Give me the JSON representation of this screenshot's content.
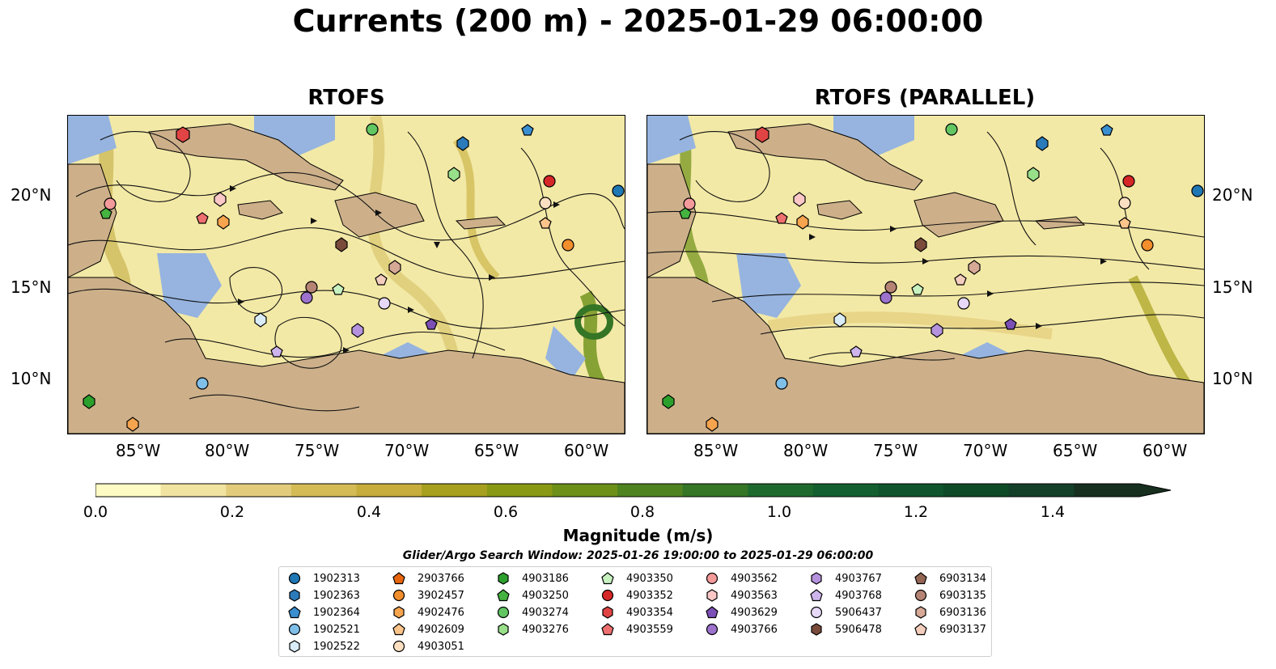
{
  "title": "Currents (200 m) - 2025-01-29 06:00:00",
  "panels": [
    {
      "title": "RTOFS"
    },
    {
      "title": "RTOFS (PARALLEL)"
    }
  ],
  "axes": {
    "lon_ticks": [
      "85°W",
      "80°W",
      "75°W",
      "70°W",
      "65°W",
      "60°W"
    ],
    "lat_ticks": [
      "20°N",
      "15°N",
      "10°N"
    ]
  },
  "colorbar": {
    "label": "Magnitude (m/s)",
    "ticks": [
      "0.0",
      "0.2",
      "0.4",
      "0.6",
      "0.8",
      "1.0",
      "1.2",
      "1.4"
    ],
    "colors": [
      "#fffbc4",
      "#f1e3a0",
      "#e2cc7c",
      "#d4bb56",
      "#c6ad3c",
      "#a6a01e",
      "#8a9914",
      "#6c9018",
      "#4f8320",
      "#357526",
      "#1e6a2e",
      "#145f30",
      "#0f542d",
      "#0f4a27",
      "#14402a",
      "#172f1e"
    ]
  },
  "search_window": "Glider/Argo Search Window: 2025-01-26 19:00:00 to 2025-01-29 06:00:00",
  "colors": {
    "ocean": "#f3e9a6",
    "land": "#cdb08a",
    "shelf": "#96b4df",
    "border": "#000000"
  },
  "legend": [
    {
      "id": "1902313",
      "shape": "circle",
      "color": "#1f77b4"
    },
    {
      "id": "1902363",
      "shape": "hexagon",
      "color": "#2b7bba"
    },
    {
      "id": "1902364",
      "shape": "pentagon",
      "color": "#3a8fd0"
    },
    {
      "id": "1902521",
      "shape": "circle",
      "color": "#7fbfe8"
    },
    {
      "id": "1902522",
      "shape": "hexagon",
      "color": "#d9ecf8"
    },
    {
      "id": "2903766",
      "shape": "pentagon",
      "color": "#e8650e"
    },
    {
      "id": "3902457",
      "shape": "circle",
      "color": "#f28e2b"
    },
    {
      "id": "4902476",
      "shape": "hexagon",
      "color": "#f7a44f"
    },
    {
      "id": "4902609",
      "shape": "pentagon",
      "color": "#fbc48b"
    },
    {
      "id": "4903051",
      "shape": "circle",
      "color": "#fde0c2"
    },
    {
      "id": "4903186",
      "shape": "hexagon",
      "color": "#2ca02c"
    },
    {
      "id": "4903250",
      "shape": "pentagon",
      "color": "#45b33f"
    },
    {
      "id": "4903274",
      "shape": "circle",
      "color": "#62c662"
    },
    {
      "id": "4903276",
      "shape": "hexagon",
      "color": "#98df8a"
    },
    {
      "id": "4903350",
      "shape": "pentagon",
      "color": "#c7f2c0"
    },
    {
      "id": "4903352",
      "shape": "circle",
      "color": "#d62728"
    },
    {
      "id": "4903354",
      "shape": "hexagon",
      "color": "#e04444"
    },
    {
      "id": "4903559",
      "shape": "pentagon",
      "color": "#ee6f6f"
    },
    {
      "id": "4903562",
      "shape": "circle",
      "color": "#f49a9a"
    },
    {
      "id": "4903563",
      "shape": "hexagon",
      "color": "#fbc7c7"
    },
    {
      "id": "4903629",
      "shape": "pentagon",
      "color": "#7b4fb5"
    },
    {
      "id": "4903766",
      "shape": "circle",
      "color": "#9c72cc"
    },
    {
      "id": "4903767",
      "shape": "hexagon",
      "color": "#b592dd"
    },
    {
      "id": "4903768",
      "shape": "pentagon",
      "color": "#cdb4ec"
    },
    {
      "id": "5906437",
      "shape": "circle",
      "color": "#e6d8f6"
    },
    {
      "id": "5906478",
      "shape": "hexagon",
      "color": "#7a4b3a"
    },
    {
      "id": "6903134",
      "shape": "pentagon",
      "color": "#946553"
    },
    {
      "id": "6903135",
      "shape": "circle",
      "color": "#b58474"
    },
    {
      "id": "6903136",
      "shape": "hexagon",
      "color": "#d6a896"
    },
    {
      "id": "6903137",
      "shape": "pentagon",
      "color": "#f3cdbd"
    }
  ]
}
